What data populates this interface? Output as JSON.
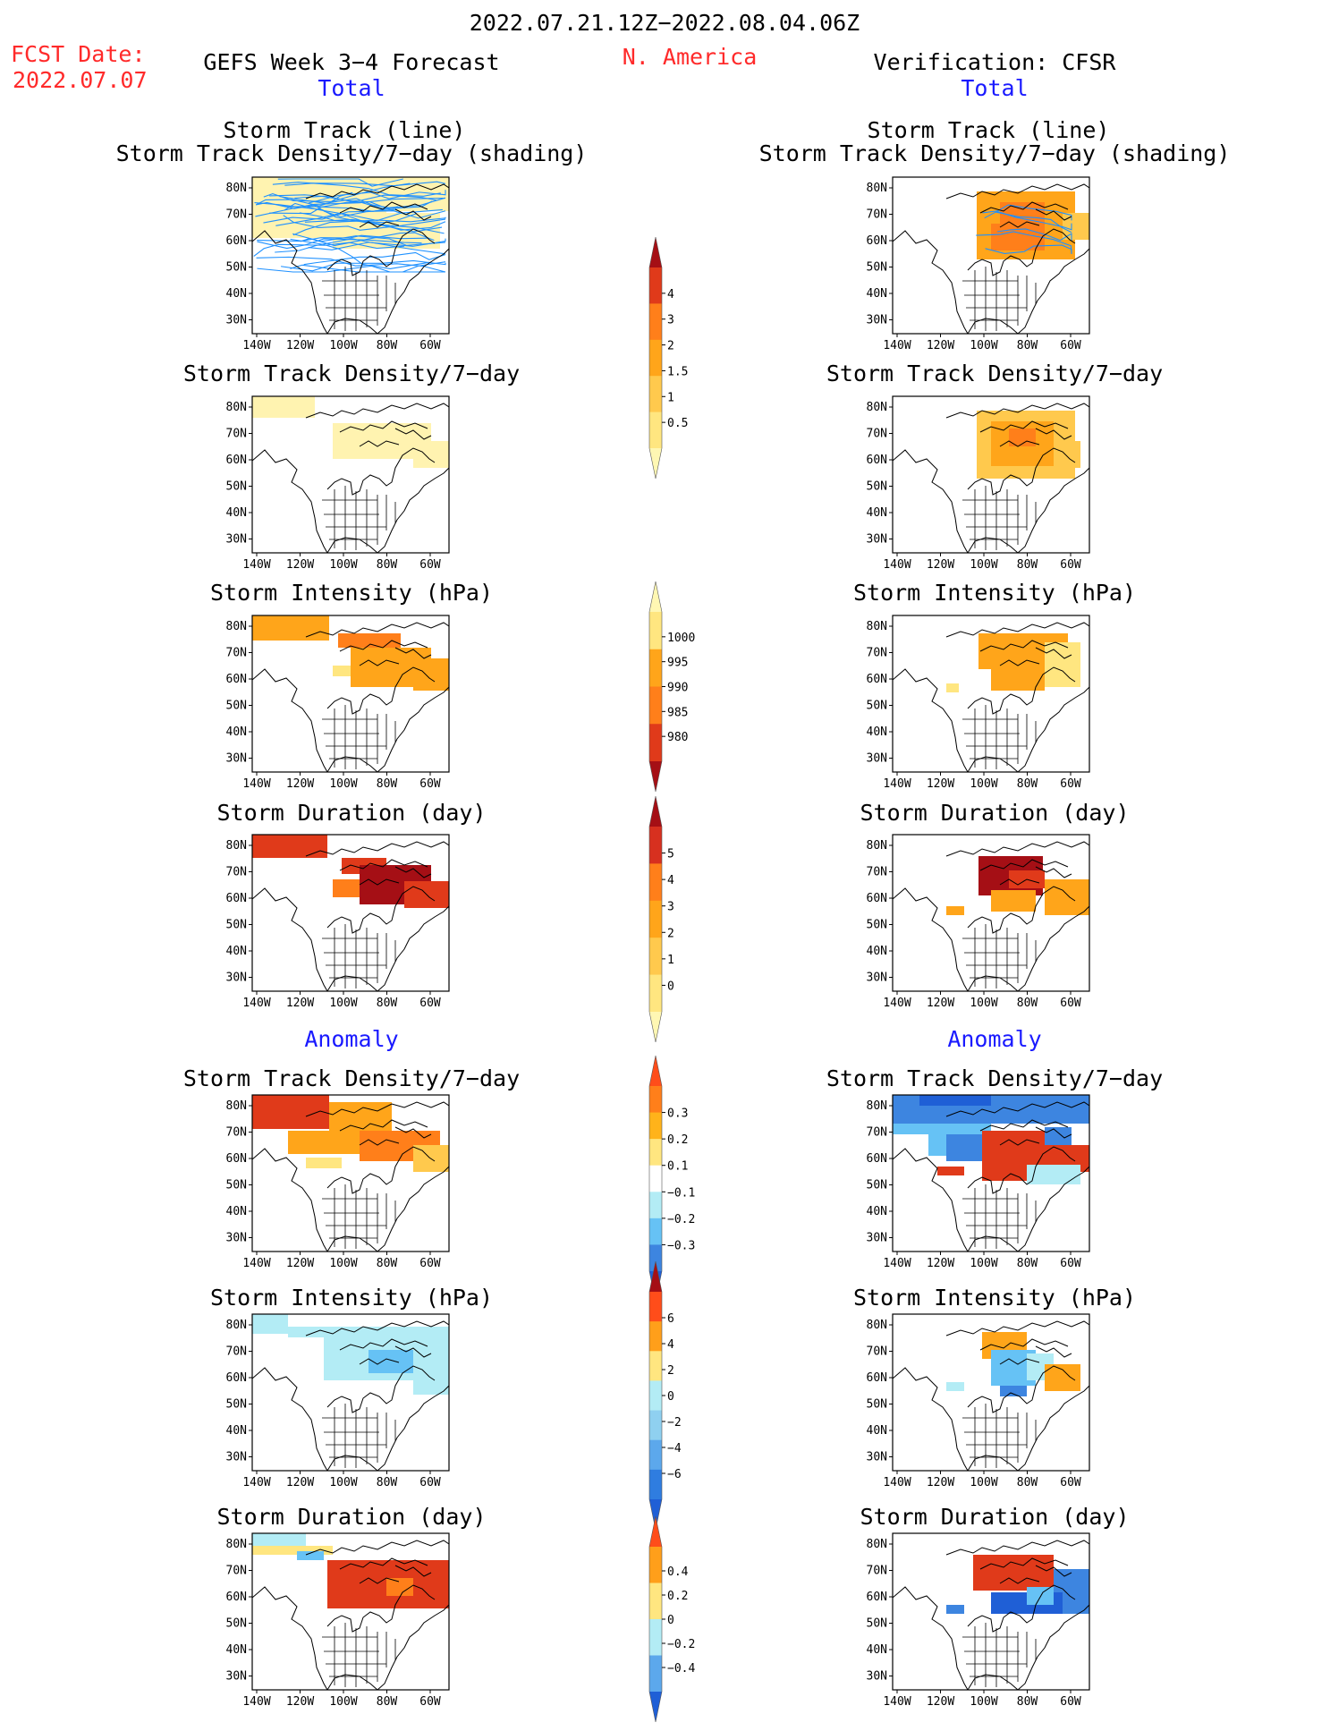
{
  "header": {
    "title": "2022.07.21.12Z−2022.08.04.06Z",
    "fcst_label": "FCST Date:",
    "fcst_date": "2022.07.07",
    "region": "N. America",
    "left_title": "GEFS Week 3−4 Forecast",
    "right_title": "Verification: CFSR",
    "left_total": "Total",
    "right_total": "Total",
    "left_anomaly": "Anomaly",
    "right_anomaly": "Anomaly"
  },
  "axes": {
    "lat_labels": [
      "80N",
      "70N",
      "60N",
      "50N",
      "40N",
      "30N"
    ],
    "lon_labels": [
      "140W",
      "120W",
      "100W",
      "80W",
      "60W"
    ]
  },
  "panels": {
    "left": [
      {
        "title1": "Storm Track (line)",
        "title2": "Storm Track Density/7−day (shading)",
        "field": "fc_track"
      },
      {
        "title1": "Storm Track Density/7−day",
        "field": "fc_density"
      },
      {
        "title1": "Storm Intensity (hPa)",
        "field": "fc_intensity"
      },
      {
        "title1": "Storm Duration (day)",
        "field": "fc_duration"
      },
      {
        "title1": "Storm Track Density/7−day",
        "field": "fc_density_anom"
      },
      {
        "title1": "Storm Intensity (hPa)",
        "field": "fc_intensity_anom"
      },
      {
        "title1": "Storm Duration (day)",
        "field": "fc_duration_anom"
      }
    ],
    "right": [
      {
        "title1": "Storm Track (line)",
        "title2": "Storm Track Density/7−day (shading)",
        "field": "vf_track"
      },
      {
        "title1": "Storm Track Density/7−day",
        "field": "vf_density"
      },
      {
        "title1": "Storm Intensity (hPa)",
        "field": "vf_intensity"
      },
      {
        "title1": "Storm Duration (day)",
        "field": "vf_duration"
      },
      {
        "title1": "Storm Track Density/7−day",
        "field": "vf_density_anom"
      },
      {
        "title1": "Storm Intensity (hPa)",
        "field": "vf_intensity_anom"
      },
      {
        "title1": "Storm Duration (day)",
        "field": "vf_duration_anom"
      }
    ]
  },
  "colorbars": [
    {
      "name": "density",
      "labels": [
        "4",
        "3",
        "2",
        "1.5",
        "1",
        "0.5"
      ],
      "colors": [
        "#a50f15",
        "#e03a1a",
        "#ff7f1a",
        "#ffa51a",
        "#ffc94d",
        "#ffe680",
        "#fff7b3"
      ]
    },
    {
      "name": "intensity",
      "labels": [
        "1000",
        "995",
        "990",
        "985",
        "980"
      ],
      "colors": [
        "#fff7b3",
        "#ffe680",
        "#ffa51a",
        "#ff7f1a",
        "#e03a1a",
        "#a50f15"
      ]
    },
    {
      "name": "duration",
      "labels": [
        "5",
        "4",
        "3",
        "2",
        "1",
        "0"
      ],
      "colors": [
        "#a50f15",
        "#d7301f",
        "#ff7f1a",
        "#ffa51a",
        "#ffc94d",
        "#ffe680",
        "#fff7b3"
      ]
    },
    {
      "name": "density_anom",
      "labels": [
        "0.3",
        "0.2",
        "0.1",
        "−0.1",
        "−0.2",
        "−0.3"
      ],
      "colors": [
        "#ff4d1a",
        "#ff7f1a",
        "#ffb31a",
        "#ffe680",
        "#ffffff",
        "#b3ecf5",
        "#66c2f5",
        "#3d85e0",
        "#1f5fd6"
      ]
    },
    {
      "name": "intensity_anom",
      "labels": [
        "6",
        "4",
        "2",
        "0",
        "−2",
        "−4",
        "−6"
      ],
      "colors": [
        "#a50f15",
        "#ff4d1a",
        "#ff9f1a",
        "#ffe680",
        "#b3ecf5",
        "#8fd0f0",
        "#5ca8ec",
        "#2f7de0",
        "#1f5fd6"
      ]
    },
    {
      "name": "duration_anom",
      "labels": [
        "0.4",
        "0.2",
        "0",
        "−0.2",
        "−0.4"
      ],
      "colors": [
        "#ff4d1a",
        "#ff9f1a",
        "#ffe680",
        "#b3ecf5",
        "#5ca8ec",
        "#1f5fd6"
      ]
    }
  ],
  "colors": {
    "red_text": "#ff2a2a",
    "blue_text": "#1a1aff",
    "track_line": "#1e90ff"
  }
}
